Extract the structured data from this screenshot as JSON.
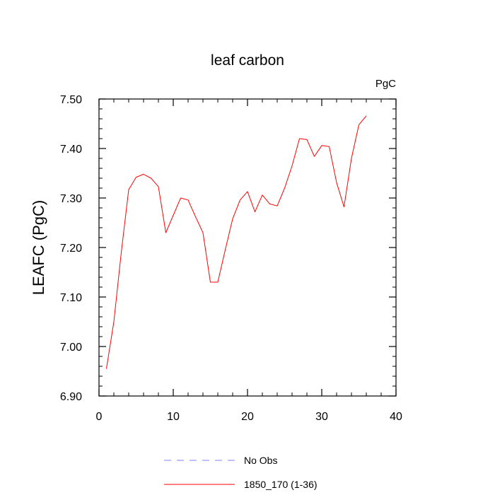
{
  "chart_data": {
    "type": "line",
    "title": "leaf carbon",
    "units_label": "PgC",
    "xlabel": "",
    "ylabel": "LEAFC  (PgC)",
    "xlim": [
      0,
      40
    ],
    "ylim": [
      6.9,
      7.5
    ],
    "x_ticks": [
      0,
      10,
      20,
      30,
      40
    ],
    "x_tick_labels": [
      "0",
      "10",
      "20",
      "30",
      "40"
    ],
    "y_ticks": [
      6.9,
      7.0,
      7.1,
      7.2,
      7.3,
      7.4,
      7.5
    ],
    "y_tick_labels": [
      "6.90",
      "7.00",
      "7.10",
      "7.20",
      "7.30",
      "7.40",
      "7.50"
    ],
    "grid": false,
    "legend_position": "bottom-center",
    "series": [
      {
        "name": "No Obs",
        "color": "#8080ff",
        "dash": "dashed",
        "x": [],
        "values": []
      },
      {
        "name": "1850_170 (1-36)",
        "color": "#ff0000",
        "dash": "solid",
        "x": [
          1,
          2,
          3,
          4,
          5,
          6,
          7,
          8,
          9,
          10,
          11,
          12,
          13,
          14,
          15,
          16,
          17,
          18,
          19,
          20,
          21,
          22,
          23,
          24,
          25,
          26,
          27,
          28,
          29,
          30,
          31,
          32,
          33,
          34,
          35,
          36
        ],
        "values": [
          6.955,
          7.05,
          7.19,
          7.317,
          7.342,
          7.348,
          7.34,
          7.323,
          7.23,
          7.265,
          7.3,
          7.296,
          7.262,
          7.23,
          7.13,
          7.13,
          7.195,
          7.258,
          7.296,
          7.313,
          7.272,
          7.306,
          7.288,
          7.284,
          7.32,
          7.365,
          7.42,
          7.418,
          7.384,
          7.406,
          7.404,
          7.331,
          7.282,
          7.38,
          7.448,
          7.466
        ]
      }
    ]
  }
}
